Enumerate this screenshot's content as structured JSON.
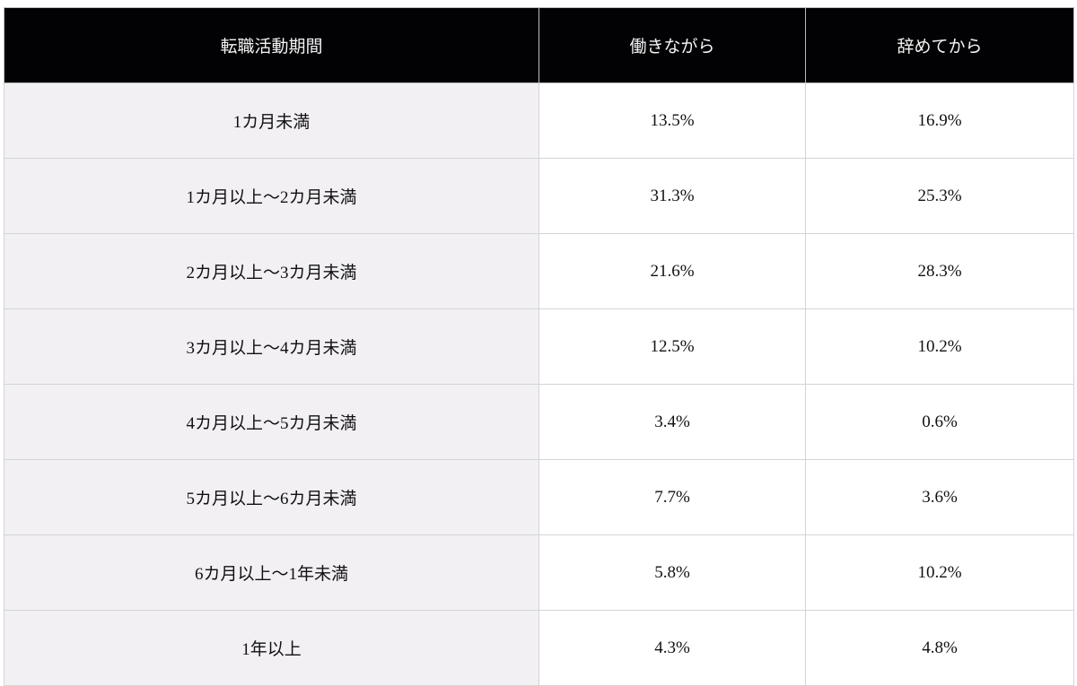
{
  "table": {
    "headers": [
      "転職活動期間",
      "働きながら",
      "辞めてから"
    ],
    "rows": [
      [
        "1カ月未満",
        "13.5%",
        "16.9%"
      ],
      [
        "1カ月以上〜2カ月未満",
        "31.3%",
        "25.3%"
      ],
      [
        "2カ月以上〜3カ月未満",
        "21.6%",
        "28.3%"
      ],
      [
        "3カ月以上〜4カ月未満",
        "12.5%",
        "10.2%"
      ],
      [
        "4カ月以上〜5カ月未満",
        "3.4%",
        "0.6%"
      ],
      [
        "5カ月以上〜6カ月未満",
        "7.7%",
        "3.6%"
      ],
      [
        "6カ月以上〜1年未満",
        "5.8%",
        "10.2%"
      ],
      [
        "1年以上",
        "4.3%",
        "4.8%"
      ]
    ]
  },
  "colors": {
    "header_bg": "#020104",
    "label_bg": "#f2f0f3"
  }
}
